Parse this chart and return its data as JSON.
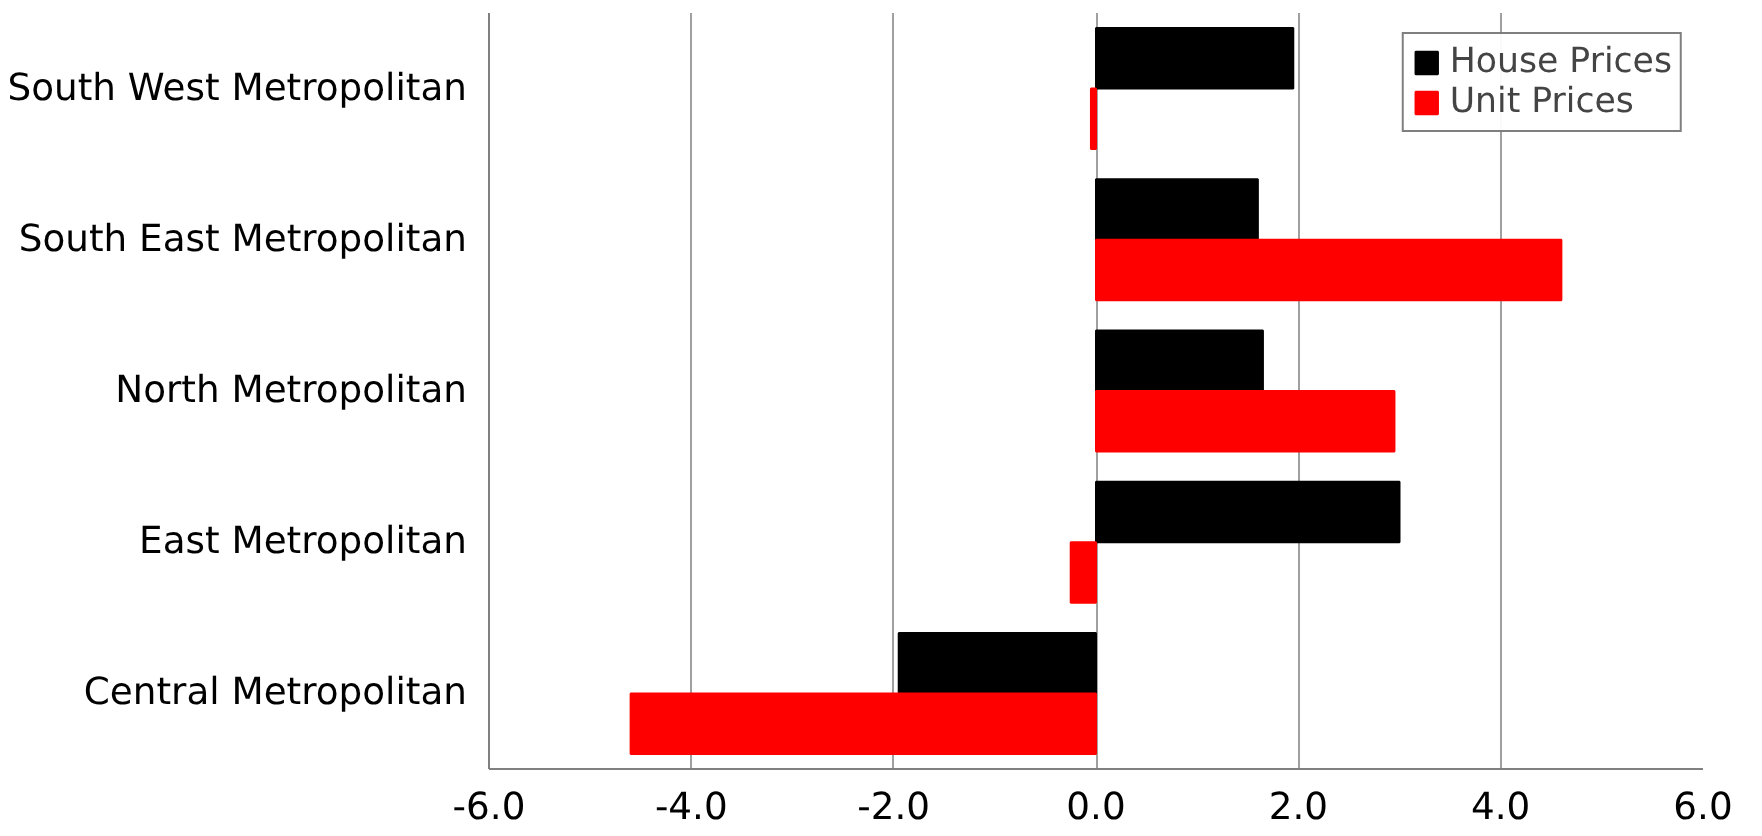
{
  "chart_data": {
    "type": "bar",
    "orientation": "horizontal",
    "categories": [
      "South West Metropolitan",
      "South East Metropolitan",
      "North Metropolitan",
      "East Metropolitan",
      "Central Metropolitan"
    ],
    "series": [
      {
        "name": "House Prices",
        "color": "#000000",
        "values": [
          1.95,
          1.6,
          1.65,
          3.0,
          -1.95
        ]
      },
      {
        "name": "Unit Prices",
        "color": "#ff0000",
        "values": [
          -0.05,
          4.6,
          2.95,
          -0.25,
          -4.6
        ]
      }
    ],
    "xlim": [
      -6,
      6
    ],
    "xticks": [
      {
        "value": -6,
        "label": "-6.0"
      },
      {
        "value": -4,
        "label": "-4.0"
      },
      {
        "value": -2,
        "label": "-2.0"
      },
      {
        "value": 0,
        "label": "0.0"
      },
      {
        "value": 2,
        "label": "2.0"
      },
      {
        "value": 4,
        "label": "4.0"
      },
      {
        "value": 6,
        "label": "6.0"
      }
    ],
    "grid": "x",
    "legend": "top right"
  }
}
